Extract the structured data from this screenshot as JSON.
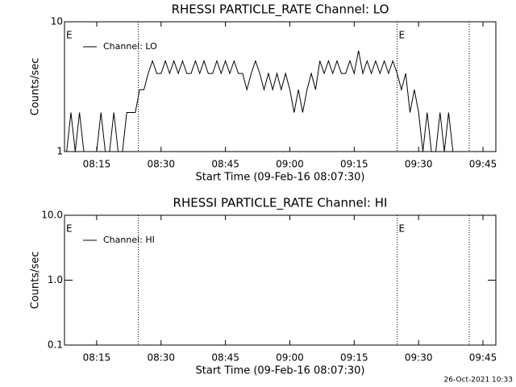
{
  "chart_data": [
    {
      "type": "line",
      "title": "RHESSI PARTICLE_RATE Channel: LO",
      "xlabel": "Start Time (09-Feb-16 08:07:30)",
      "ylabel": "Counts/sec",
      "log_y": true,
      "legend": "upper left",
      "xlim": [
        487.5,
        588
      ],
      "xticks": [
        {
          "value": 495,
          "label": "08:15"
        },
        {
          "value": 510,
          "label": "08:30"
        },
        {
          "value": 525,
          "label": "08:45"
        },
        {
          "value": 540,
          "label": "09:00"
        },
        {
          "value": 555,
          "label": "09:15"
        },
        {
          "value": 570,
          "label": "09:30"
        },
        {
          "value": 585,
          "label": "09:45"
        }
      ],
      "ylim": [
        1,
        10
      ],
      "yticks": [
        1,
        10
      ],
      "markers": [
        504.7,
        565,
        581.8
      ],
      "annotations": [
        {
          "text": "E",
          "x": 487.5
        },
        {
          "text": "E",
          "x": 565
        }
      ],
      "x": [
        488,
        489,
        490,
        491,
        492,
        493,
        494,
        495,
        496,
        497,
        498,
        499,
        500,
        501,
        502,
        503,
        504,
        505,
        506,
        507,
        508,
        509,
        510,
        511,
        512,
        513,
        514,
        515,
        516,
        517,
        518,
        519,
        520,
        521,
        522,
        523,
        524,
        525,
        526,
        527,
        528,
        529,
        530,
        531,
        532,
        533,
        534,
        535,
        536,
        537,
        538,
        539,
        540,
        541,
        542,
        543,
        544,
        545,
        546,
        547,
        548,
        549,
        550,
        551,
        552,
        553,
        554,
        555,
        556,
        557,
        558,
        559,
        560,
        561,
        562,
        563,
        564,
        565,
        566,
        567,
        568,
        569,
        570,
        571,
        572,
        573,
        574,
        575,
        576,
        577,
        578,
        579,
        580,
        581,
        582,
        583,
        584,
        585,
        586
      ],
      "series": [
        {
          "name": "Channel: LO",
          "color": "#000000",
          "values": [
            1,
            2,
            1,
            2,
            1,
            1,
            1,
            1,
            2,
            1,
            1,
            2,
            1,
            1,
            2,
            2,
            2,
            3,
            3,
            4,
            5,
            4,
            4,
            5,
            4,
            5,
            4,
            5,
            4,
            4,
            5,
            4,
            5,
            4,
            4,
            5,
            4,
            5,
            4,
            5,
            4,
            4,
            3,
            4,
            5,
            4,
            3,
            4,
            3,
            4,
            3,
            4,
            3,
            2,
            3,
            2,
            3,
            4,
            3,
            5,
            4,
            5,
            4,
            5,
            4,
            4,
            5,
            4,
            6,
            4,
            5,
            4,
            5,
            4,
            5,
            4,
            5,
            4,
            3,
            4,
            2,
            3,
            2,
            1,
            2,
            1,
            1,
            2,
            1,
            2,
            1,
            1,
            1,
            1,
            1,
            1,
            1,
            1,
            1
          ]
        }
      ]
    },
    {
      "type": "line",
      "title": "RHESSI PARTICLE_RATE Channel: HI",
      "xlabel": "Start Time (09-Feb-16 08:07:30)",
      "ylabel": "Counts/sec",
      "log_y": true,
      "legend": "upper left",
      "xlim": [
        487.5,
        588
      ],
      "xticks": [
        {
          "value": 495,
          "label": "08:15"
        },
        {
          "value": 510,
          "label": "08:30"
        },
        {
          "value": 525,
          "label": "08:45"
        },
        {
          "value": 540,
          "label": "09:00"
        },
        {
          "value": 555,
          "label": "09:15"
        },
        {
          "value": 570,
          "label": "09:30"
        },
        {
          "value": 585,
          "label": "09:45"
        }
      ],
      "ylim": [
        0.1,
        10
      ],
      "yticks": [
        0.1,
        {
          "value": 1,
          "label": "1.0"
        },
        {
          "value": 10,
          "label": "10.0"
        }
      ],
      "markers": [
        504.7,
        565,
        581.8
      ],
      "annotations": [
        {
          "text": "E",
          "x": 487.5
        },
        {
          "text": "E",
          "x": 565
        }
      ],
      "x": [],
      "series": [
        {
          "name": "Channel: HI",
          "color": "#000000",
          "values": []
        }
      ]
    }
  ],
  "footer": "26-Oct-2021 10:33"
}
